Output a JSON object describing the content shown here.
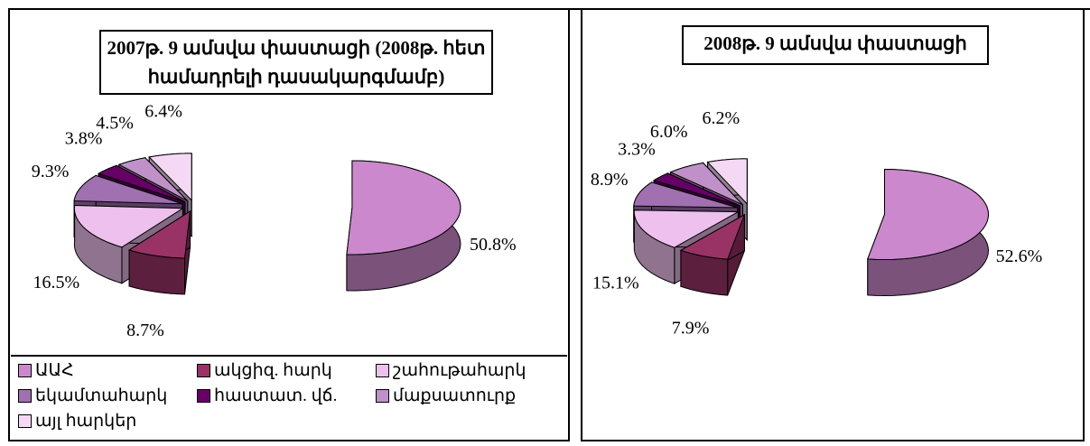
{
  "chart_data": [
    {
      "type": "pie3d",
      "title": "2007թ. 9 ամսվա փաստացի (2008թ. հետ համադրելի դասակարգմամբ)",
      "categories": [
        "ԱԱՀ",
        "ակցիզ. հարկ",
        "շահութահարկ",
        "եկամտահարկ",
        "հաստատ. վճ.",
        "մաքսատուրք",
        "այլ հարկեր"
      ],
      "values": [
        50.8,
        8.7,
        16.5,
        9.3,
        3.8,
        4.5,
        6.4
      ],
      "value_labels": [
        "50.8%",
        "8.7%",
        "16.5%",
        "9.3%",
        "3.8%",
        "4.5%",
        "6.4%"
      ],
      "colors": [
        "#cc88cc",
        "#993366",
        "#eec0ee",
        "#a070b0",
        "#660066",
        "#c090c8",
        "#f4d8f4"
      ],
      "legend": true
    },
    {
      "type": "pie3d",
      "title": "2008թ. 9 ամսվա փաստացի",
      "values": [
        52.6,
        7.9,
        15.1,
        8.9,
        3.3,
        6.0,
        6.2
      ],
      "value_labels": [
        "52.6%",
        "7.9%",
        "15.1%",
        "8.9%",
        "3.3%",
        "6.0%",
        "6.2%"
      ],
      "colors": [
        "#cc88cc",
        "#993366",
        "#eec0ee",
        "#a070b0",
        "#660066",
        "#c090c8",
        "#f4d8f4"
      ],
      "legend": false
    }
  ]
}
